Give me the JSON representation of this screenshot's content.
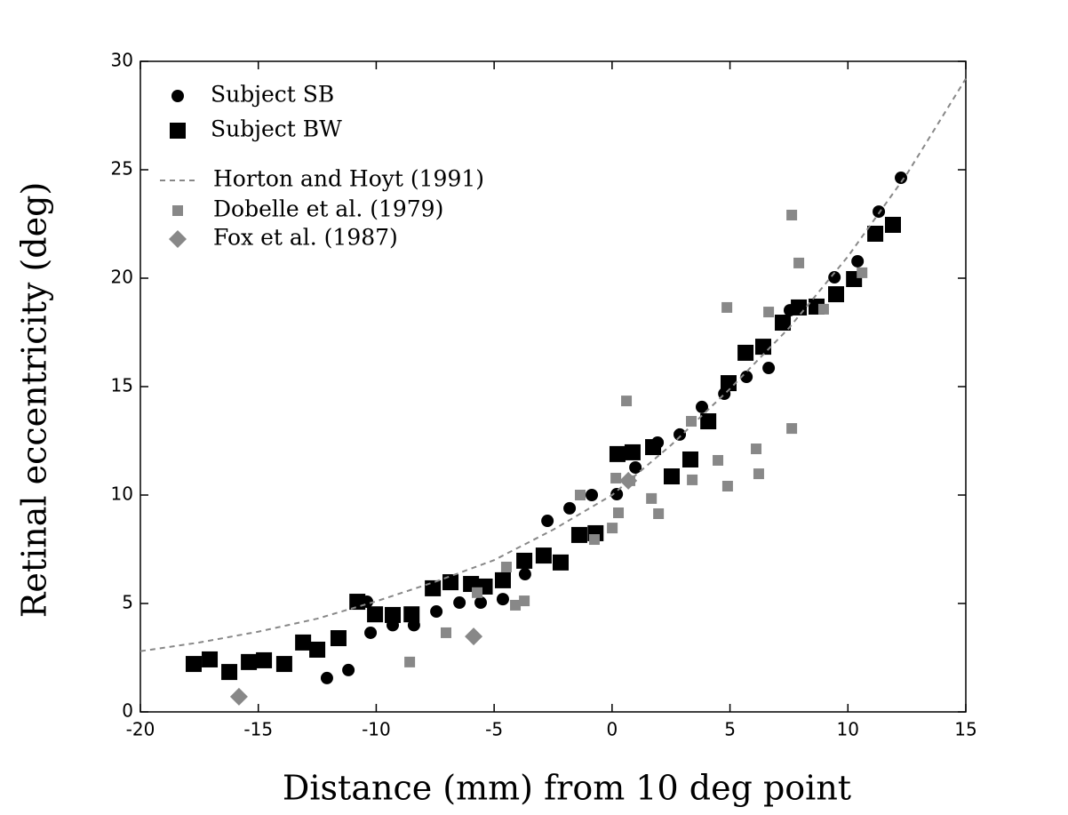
{
  "chart_data": {
    "type": "scatter",
    "xlabel": "Distance (mm) from 10 deg point",
    "ylabel": "Retinal eccentricity (deg)",
    "xlim": [
      -20,
      15
    ],
    "ylim": [
      0,
      30
    ],
    "xticks": [
      -20,
      -15,
      -10,
      -5,
      0,
      5,
      10,
      15
    ],
    "yticks": [
      0,
      5,
      10,
      15,
      20,
      25,
      30
    ],
    "legend": "upper left",
    "series": [
      {
        "name": "Subject SB",
        "color": "#000000",
        "marker": "circle",
        "x": [
          -12.09,
          -11.18,
          -10.24,
          -10.39,
          -9.3,
          -8.4,
          -7.45,
          -6.47,
          -5.57,
          -4.63,
          -3.69,
          -2.74,
          -1.8,
          -0.86,
          0.2,
          0.99,
          1.93,
          2.87,
          3.81,
          4.76,
          5.7,
          6.64,
          7.54,
          9.43,
          10.41,
          11.31,
          12.25
        ],
        "values": [
          1.56,
          1.93,
          3.65,
          5.08,
          4.0,
          4.0,
          4.63,
          5.04,
          5.04,
          5.2,
          6.35,
          8.81,
          9.39,
          10.0,
          10.04,
          11.27,
          12.42,
          12.79,
          14.06,
          14.67,
          15.45,
          15.86,
          18.52,
          20.04,
          20.78,
          23.07,
          24.63
        ]
      },
      {
        "name": "Subject BW",
        "color": "#000000",
        "marker": "square",
        "x": [
          -17.74,
          -17.06,
          -16.23,
          -15.4,
          -14.76,
          -13.9,
          -13.1,
          -12.5,
          -11.6,
          -10.8,
          -10.05,
          -9.3,
          -8.5,
          -7.6,
          -6.85,
          -5.98,
          -5.4,
          -4.63,
          -3.72,
          -2.9,
          -2.18,
          -1.39,
          -0.7,
          0.23,
          0.87,
          1.74,
          2.53,
          3.32,
          4.08,
          4.94,
          5.66,
          6.41,
          7.24,
          7.92,
          8.67,
          9.5,
          10.26,
          11.16,
          11.91
        ],
        "values": [
          2.21,
          2.42,
          1.84,
          2.3,
          2.38,
          2.21,
          3.2,
          2.87,
          3.4,
          5.08,
          4.5,
          4.47,
          4.5,
          5.7,
          5.98,
          5.9,
          5.78,
          6.07,
          6.97,
          7.21,
          6.89,
          8.16,
          8.24,
          11.89,
          11.97,
          12.21,
          10.86,
          11.64,
          13.4,
          15.16,
          16.56,
          16.84,
          17.95,
          18.65,
          18.69,
          19.26,
          19.96,
          22.05,
          22.46
        ]
      },
      {
        "name": "Horton and Hoyt (1991)",
        "color": "#888888",
        "marker": "dashed-line",
        "x": [
          -20,
          -17.5,
          -15,
          -12.5,
          -10,
          -7.5,
          -5,
          -2.5,
          0,
          2.5,
          5,
          7.5,
          10,
          12.5,
          15
        ],
        "values": [
          2.8,
          3.2,
          3.7,
          4.3,
          5.1,
          6.0,
          7.0,
          8.4,
          10.0,
          12.3,
          14.9,
          17.7,
          21.0,
          24.8,
          29.2
        ]
      },
      {
        "name": "Dobelle et al. (1979)",
        "color": "#888888",
        "marker": "small-square",
        "x": [
          -8.58,
          -7.04,
          -5.72,
          -4.48,
          -4.1,
          -3.72,
          -1.35,
          -0.75,
          0.01,
          0.16,
          0.27,
          0.61,
          0.76,
          1.67,
          1.97,
          3.36,
          3.4,
          4.49,
          4.87,
          4.9,
          6.11,
          6.22,
          6.64,
          7.62,
          7.62,
          7.92,
          8.97,
          10.6
        ],
        "values": [
          2.3,
          3.65,
          5.5,
          6.68,
          4.92,
          5.12,
          10.0,
          7.95,
          8.48,
          10.78,
          9.18,
          14.34,
          10.66,
          9.84,
          9.14,
          13.4,
          10.7,
          11.6,
          18.65,
          10.41,
          12.13,
          10.98,
          18.44,
          22.91,
          13.07,
          20.7,
          18.57,
          20.25
        ]
      },
      {
        "name": "Fox et al. (1987)",
        "color": "#888888",
        "marker": "diamond",
        "x": [
          -15.82,
          -5.87,
          0.69
        ],
        "values": [
          0.7,
          3.48,
          10.66
        ]
      }
    ]
  }
}
